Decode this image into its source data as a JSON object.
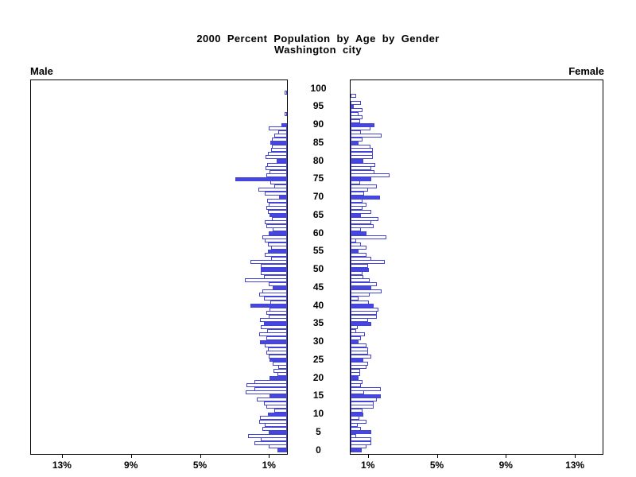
{
  "title": {
    "line1": "2000 Percent Population by Age by Gender",
    "line2": "Washington city"
  },
  "panels": {
    "male_label": "Male",
    "female_label": "Female"
  },
  "axes": {
    "age_tick_values": [
      0,
      5,
      10,
      15,
      20,
      25,
      30,
      35,
      40,
      45,
      50,
      55,
      60,
      65,
      70,
      75,
      80,
      85,
      90,
      95,
      100
    ],
    "pct_tick_values": [
      1,
      5,
      9,
      13
    ],
    "pct_tick_suffix": "%"
  },
  "colors": {
    "bar_outline": "#4343d8",
    "bar_solid_fill": "#4646e0",
    "bar_open_fill": "#ffffff",
    "axis": "#000000",
    "text": "#000000"
  },
  "chart_data": {
    "type": "bar",
    "subtype": "population-pyramid",
    "title": "2000 Percent Population by Age by Gender",
    "subtitle": "Washington city",
    "age_min": 0,
    "age_max": 100,
    "x_axis": {
      "unit": "percent",
      "ticks": [
        1,
        5,
        9,
        13
      ],
      "max": 14.6
    },
    "highlight_every": 5,
    "legend": "bars at ages divisible by 5 are solid filled",
    "series": [
      {
        "name": "Male",
        "side": "left",
        "values_pct_by_age": [
          0.55,
          1.05,
          1.9,
          1.5,
          2.27,
          1.05,
          1.45,
          1.3,
          1.62,
          1.57,
          1.12,
          0.73,
          1.2,
          1.35,
          1.75,
          1.0,
          2.4,
          1.9,
          2.35,
          1.9,
          1.0,
          0.55,
          0.8,
          0.5,
          0.85,
          1.0,
          1.04,
          1.19,
          1.11,
          1.27,
          1.55,
          1.2,
          1.6,
          1.16,
          1.5,
          1.34,
          1.57,
          1.07,
          1.19,
          1.0,
          2.11,
          0.96,
          1.34,
          1.62,
          1.42,
          0.85,
          1.04,
          2.42,
          1.34,
          1.5,
          1.5,
          1.5,
          2.11,
          0.92,
          1.27,
          1.11,
          0.92,
          1.11,
          1.27,
          1.45,
          1.08,
          0.81,
          1.19,
          1.27,
          0.88,
          1.0,
          1.11,
          1.22,
          1.04,
          1.16,
          0.45,
          1.27,
          1.65,
          0.76,
          0.96,
          3.0,
          1.2,
          1.0,
          1.25,
          1.15,
          0.6,
          1.25,
          1.1,
          0.92,
          0.86,
          0.95,
          0.88,
          0.75,
          0.5,
          1.05,
          0.3,
          0,
          0,
          0.15,
          0,
          0,
          0,
          0,
          0,
          0.15,
          0
        ]
      },
      {
        "name": "Female",
        "side": "right",
        "values_pct_by_age": [
          0.65,
          0.9,
          1.2,
          1.2,
          0.3,
          1.2,
          0.6,
          0.4,
          0.9,
          0.5,
          0.75,
          0.7,
          1.35,
          1.35,
          1.5,
          1.75,
          0.8,
          1.75,
          0.6,
          0.7,
          0.47,
          0.55,
          0.55,
          0.9,
          1.0,
          0.75,
          1.2,
          1.0,
          1.0,
          0.9,
          0.45,
          0.6,
          0.85,
          0.3,
          0.4,
          1.2,
          1.0,
          1.5,
          1.5,
          1.6,
          1.35,
          1.05,
          0.47,
          1.12,
          1.8,
          1.2,
          1.5,
          1.12,
          0.75,
          0.7,
          1.05,
          1.0,
          1.97,
          1.2,
          0.9,
          0.47,
          0.9,
          0.6,
          0.3,
          2.08,
          0.93,
          0.6,
          1.35,
          1.2,
          1.62,
          0.6,
          1.2,
          0.7,
          0.9,
          0.7,
          1.7,
          0.78,
          1.0,
          1.5,
          0.55,
          1.2,
          2.25,
          1.4,
          1.2,
          1.45,
          0.75,
          1.3,
          1.3,
          1.3,
          1.16,
          0.45,
          0.7,
          1.8,
          0.6,
          1.16,
          1.39,
          0.55,
          0.7,
          0.47,
          0.7,
          0.18,
          0.6,
          0,
          0.3,
          0,
          0
        ]
      }
    ]
  }
}
